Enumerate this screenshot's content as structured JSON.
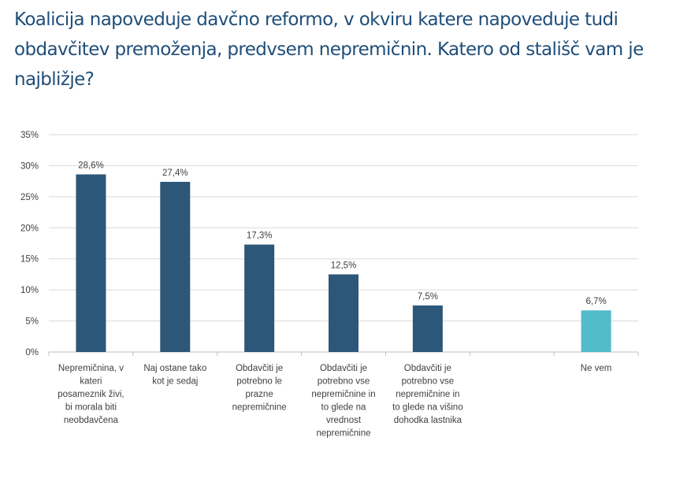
{
  "chart_data": {
    "type": "bar",
    "title": "Koalicija napoveduje davčno reformo, v okviru katere napoveduje tudi obdavčitev premoženja, predvsem nepremičnin. Katero od stališč vam je najbližje?",
    "categories": [
      [
        "Nepremičnina, v",
        "kateri",
        "posameznik živi,",
        "bi morala biti",
        "neobdavčena"
      ],
      [
        "Naj ostane tako",
        "kot je sedaj"
      ],
      [
        "Obdavčiti je",
        "potrebno le",
        "prazne",
        "nepremičnine"
      ],
      [
        "Obdavčiti je",
        "potrebno vse",
        "nepremičnine in",
        "to glede na",
        "vrednost",
        "nepremičnine"
      ],
      [
        "Obdavčiti je",
        "potrebno vse",
        "nepremičnine in",
        "to glede na višino",
        "dohodka lastnika"
      ],
      [],
      [
        "Ne vem"
      ]
    ],
    "values": [
      28.6,
      27.4,
      17.3,
      12.5,
      7.5,
      null,
      6.7
    ],
    "data_labels": [
      "28,6%",
      "27,4%",
      "17,3%",
      "12,5%",
      "7,5%",
      "",
      "6,7%"
    ],
    "colors": [
      "#2c5779",
      "#2c5779",
      "#2c5779",
      "#2c5779",
      "#2c5779",
      "#2c5779",
      "#52bccb"
    ],
    "yticks": [
      0,
      5,
      10,
      15,
      20,
      25,
      30,
      35
    ],
    "ytick_labels": [
      "0%",
      "5%",
      "10%",
      "15%",
      "20%",
      "25%",
      "30%",
      "35%"
    ],
    "ylim": [
      0,
      35
    ],
    "xlabel": "",
    "ylabel": "",
    "grid": true,
    "legend": "none"
  }
}
